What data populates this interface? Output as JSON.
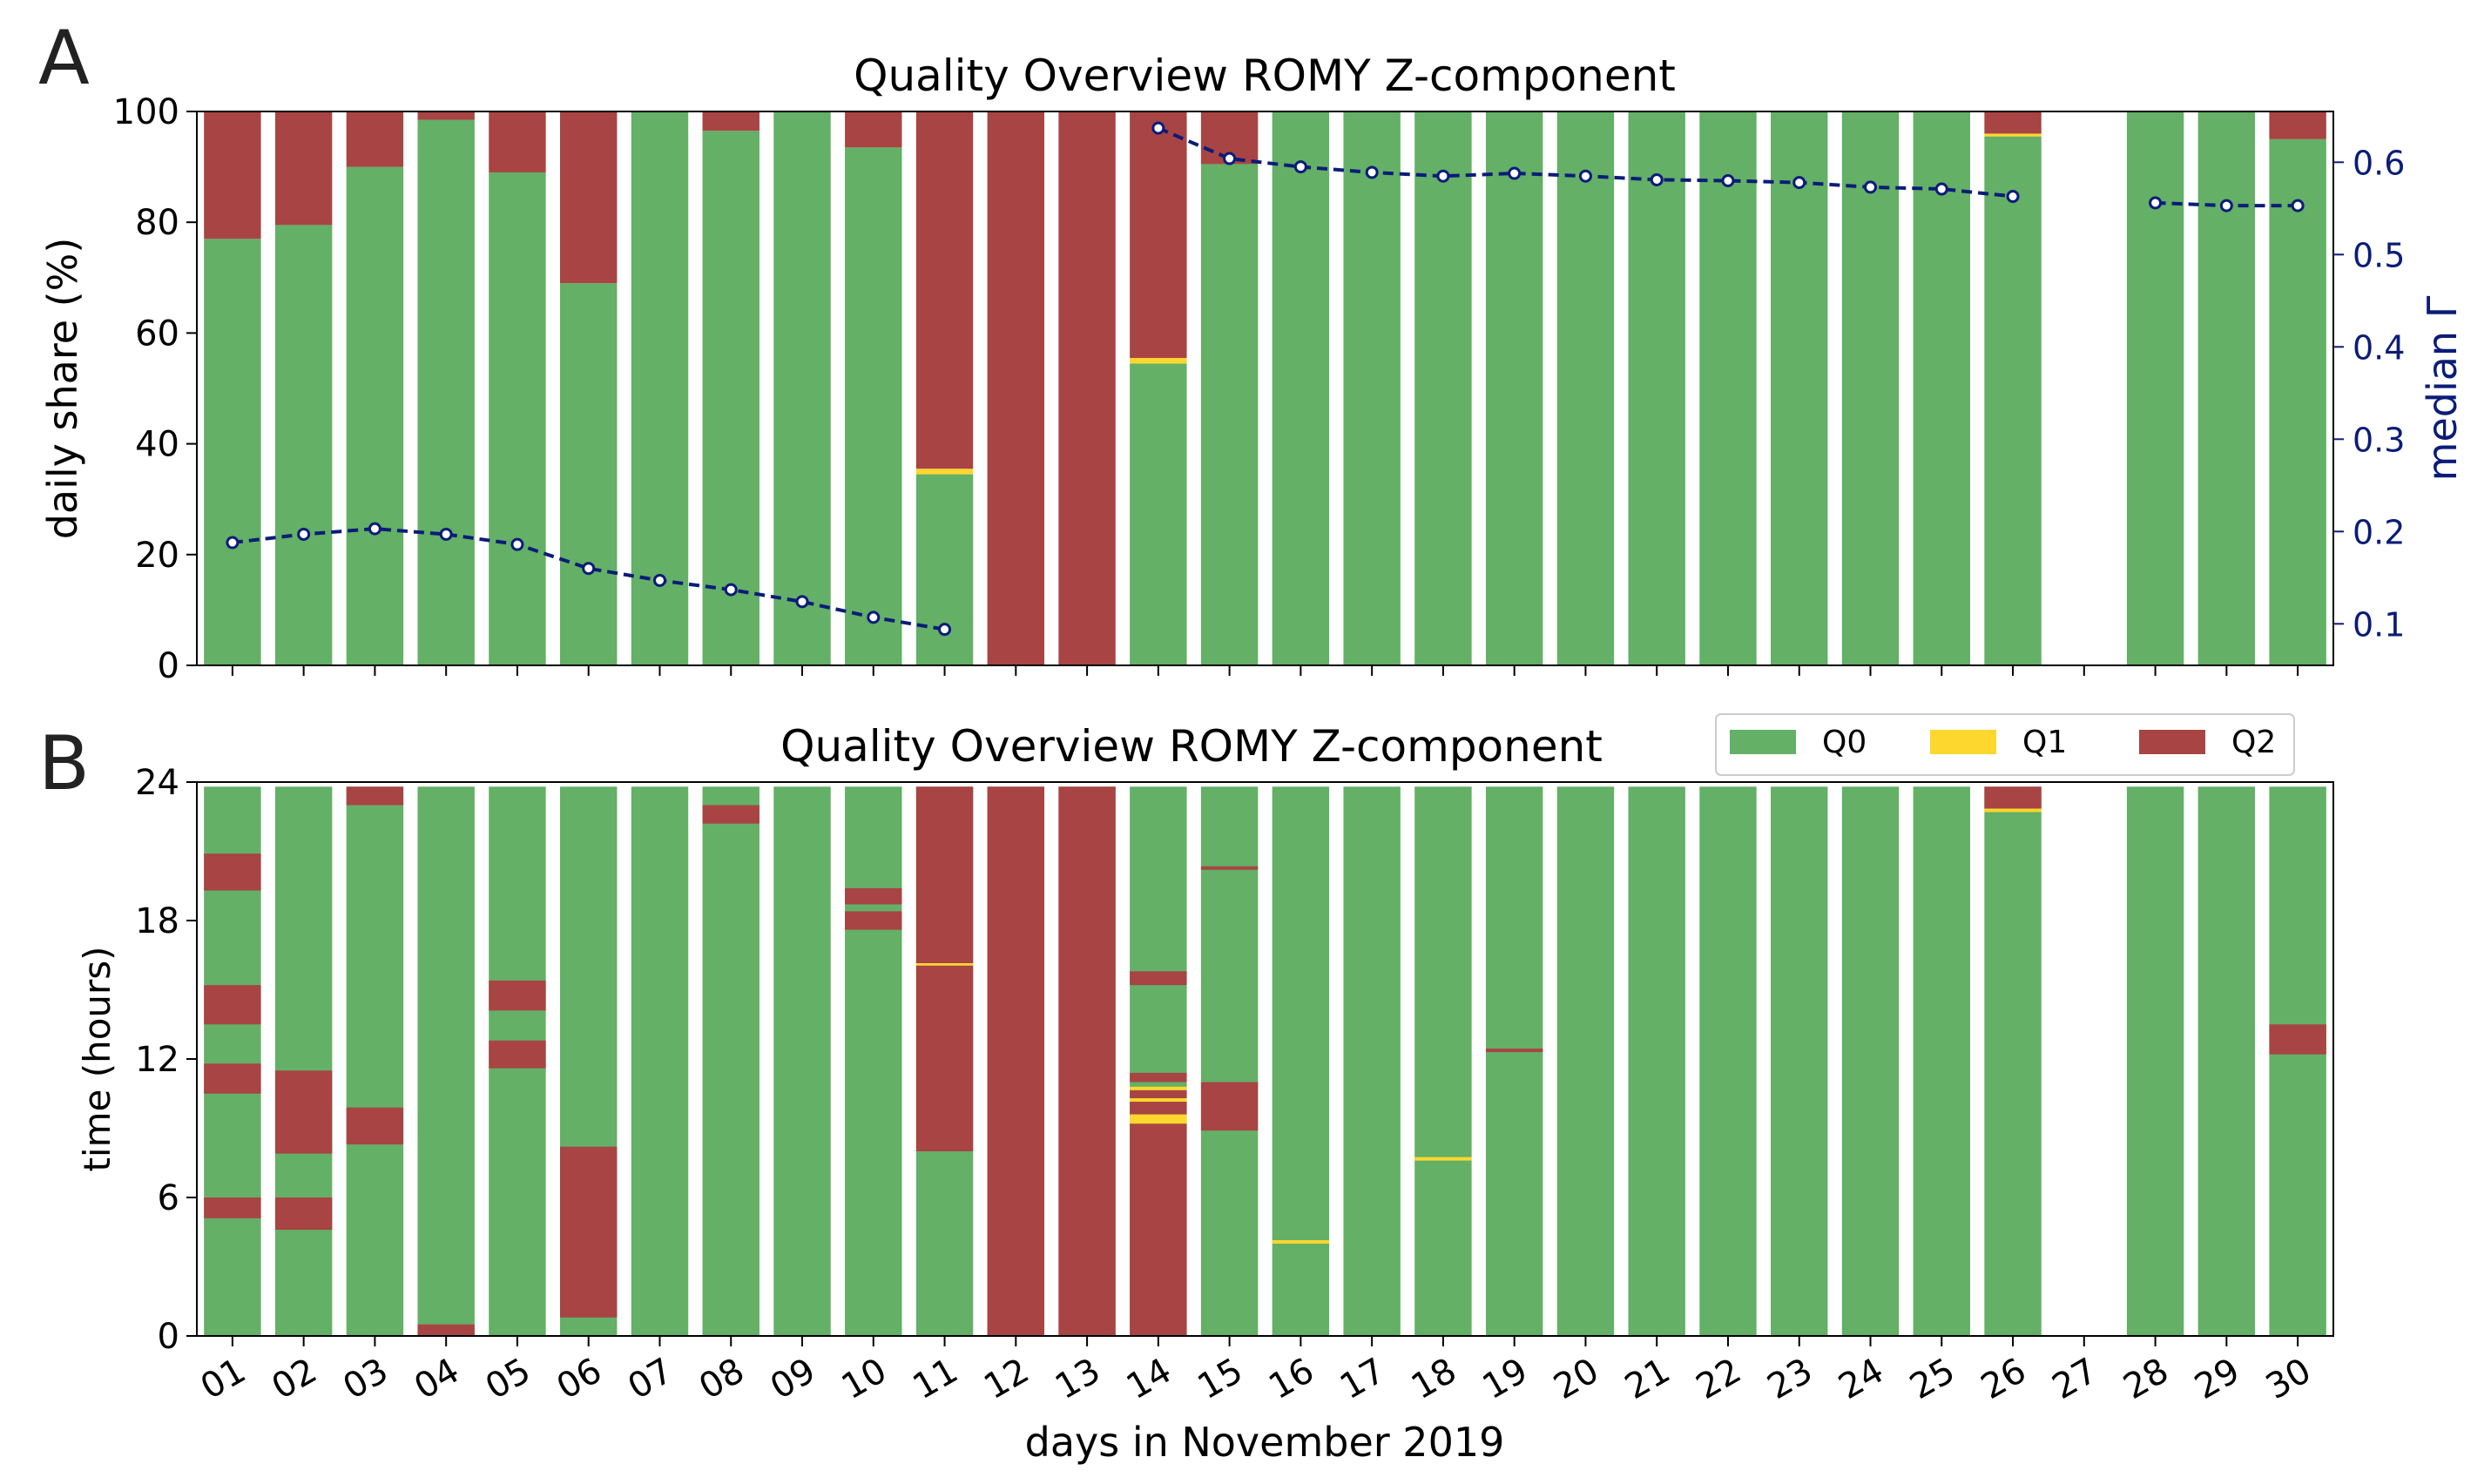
{
  "colors": {
    "q0": "#63b066",
    "q1": "#fdd72e",
    "q2": "#a84444",
    "median": "#0b1c78",
    "frame": "#000000"
  },
  "panel_labels": {
    "a": "A",
    "b": "B"
  },
  "legend": [
    {
      "key": "q0",
      "label": "Q0"
    },
    {
      "key": "q1",
      "label": "Q1"
    },
    {
      "key": "q2",
      "label": "Q2"
    }
  ],
  "chart_data": [
    {
      "type": "bar",
      "stacked": true,
      "title": "Quality Overview ROMY Z-component",
      "xlabel": "",
      "ylabel": "daily share (%)",
      "y2label": "median Γ",
      "ylim": [
        0,
        100
      ],
      "y2lim": [
        0.055,
        0.655
      ],
      "yticks": [
        0,
        20,
        40,
        60,
        80,
        100
      ],
      "y2ticks": [
        0.1,
        0.2,
        0.3,
        0.4,
        0.5,
        0.6
      ],
      "categories": [
        "01",
        "02",
        "03",
        "04",
        "05",
        "06",
        "07",
        "08",
        "09",
        "10",
        "11",
        "12",
        "13",
        "14",
        "15",
        "16",
        "17",
        "18",
        "19",
        "20",
        "21",
        "22",
        "23",
        "24",
        "25",
        "26",
        "27",
        "28",
        "29",
        "30"
      ],
      "series": [
        {
          "name": "Q0",
          "values": [
            77,
            79.5,
            90,
            98.5,
            89,
            69,
            100,
            96.5,
            100,
            93.5,
            34.5,
            0,
            0,
            54.5,
            90.5,
            100,
            100,
            100,
            100,
            100,
            100,
            100,
            100,
            100,
            100,
            95.5,
            0,
            100,
            100,
            95
          ]
        },
        {
          "name": "Q1",
          "values": [
            0,
            0,
            0,
            0,
            0,
            0,
            0,
            0,
            0,
            0,
            1,
            0,
            0,
            1,
            0,
            0,
            0,
            0,
            0,
            0,
            0,
            0,
            0,
            0,
            0,
            0.5,
            0,
            0,
            0,
            0
          ]
        },
        {
          "name": "Q2",
          "values": [
            23,
            20.5,
            10,
            1.5,
            11,
            31,
            0,
            3.5,
            0,
            6.5,
            64.5,
            100,
            100,
            44.5,
            9.5,
            0,
            0,
            0,
            0,
            0,
            0,
            0,
            0,
            0,
            0,
            4,
            0,
            0,
            0,
            5
          ]
        },
        {
          "name": "median Γ",
          "axis": "right",
          "style": "dashed-line",
          "values": [
            0.188,
            0.197,
            0.203,
            0.197,
            0.186,
            0.16,
            0.147,
            0.137,
            0.124,
            0.107,
            0.094,
            null,
            null,
            0.637,
            0.604,
            0.595,
            0.589,
            0.585,
            0.588,
            0.585,
            0.581,
            0.58,
            0.578,
            0.573,
            0.571,
            0.563,
            null,
            0.556,
            0.553,
            0.553
          ]
        }
      ]
    },
    {
      "type": "timeline",
      "title": "Quality Overview ROMY Z-component",
      "xlabel": "days in November 2019",
      "ylabel": "time (hours)",
      "ylim": [
        0,
        24
      ],
      "yticks": [
        0,
        6,
        12,
        18,
        24
      ],
      "categories": [
        "01",
        "02",
        "03",
        "04",
        "05",
        "06",
        "07",
        "08",
        "09",
        "10",
        "11",
        "12",
        "13",
        "14",
        "15",
        "16",
        "17",
        "18",
        "19",
        "20",
        "21",
        "22",
        "23",
        "24",
        "25",
        "26",
        "27",
        "28",
        "29",
        "30"
      ],
      "segments": {
        "Q1": [
          [
            11,
            16.05,
            16.15
          ],
          [
            14,
            9.2,
            9.6
          ],
          [
            14,
            10.15,
            10.3
          ],
          [
            14,
            10.65,
            10.8
          ],
          [
            16,
            4.0,
            4.15
          ],
          [
            18,
            7.6,
            7.75
          ],
          [
            26,
            22.7,
            22.85
          ]
        ],
        "Q2": [
          [
            1,
            5.1,
            6.0
          ],
          [
            1,
            10.5,
            11.8
          ],
          [
            1,
            13.5,
            15.2
          ],
          [
            1,
            19.3,
            20.9
          ],
          [
            2,
            4.6,
            6.0
          ],
          [
            2,
            7.9,
            11.5
          ],
          [
            3,
            8.3,
            9.9
          ],
          [
            3,
            23.0,
            23.8
          ],
          [
            4,
            0.0,
            0.5
          ],
          [
            5,
            11.6,
            12.8
          ],
          [
            5,
            14.1,
            15.4
          ],
          [
            6,
            0.8,
            8.2
          ],
          [
            8,
            22.2,
            23.0
          ],
          [
            10,
            17.6,
            18.4
          ],
          [
            10,
            18.7,
            19.4
          ],
          [
            11,
            8.0,
            16.05
          ],
          [
            11,
            16.15,
            23.8
          ],
          [
            12,
            0.0,
            23.8
          ],
          [
            13,
            0.0,
            23.8
          ],
          [
            14,
            0.0,
            9.2
          ],
          [
            14,
            9.6,
            10.15
          ],
          [
            14,
            10.3,
            10.65
          ],
          [
            14,
            11.0,
            11.4
          ],
          [
            14,
            15.2,
            15.8
          ],
          [
            15,
            8.9,
            11.0
          ],
          [
            15,
            20.2,
            20.35
          ],
          [
            19,
            12.3,
            12.45
          ],
          [
            26,
            22.85,
            23.8
          ],
          [
            30,
            12.2,
            13.5
          ]
        ]
      },
      "missing_days": [
        "27"
      ]
    }
  ]
}
